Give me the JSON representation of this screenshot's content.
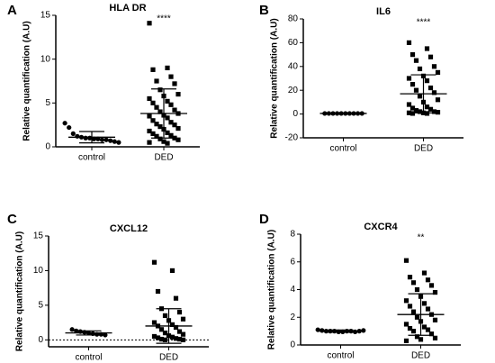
{
  "chart_data": [
    {
      "type": "dotplot",
      "panel": "A",
      "title": "HLA DR",
      "ylabel": "Relative quantification (A.U)",
      "annotation": "****",
      "categories": [
        "control",
        "DED"
      ],
      "markers": [
        "circle",
        "square"
      ],
      "points": [
        [
          2.7,
          2.2,
          1.5,
          1.2,
          1.1,
          1.0,
          1.0,
          0.9,
          0.9,
          0.8,
          0.8,
          0.7,
          0.6,
          0.5
        ],
        [
          14.1,
          9.0,
          8.8,
          8.0,
          7.5,
          7.2,
          6.5,
          6.0,
          5.8,
          5.5,
          5.2,
          5.0,
          4.8,
          4.5,
          4.2,
          4.0,
          3.8,
          3.6,
          3.5,
          3.3,
          3.0,
          2.8,
          2.6,
          2.5,
          2.3,
          2.1,
          2.0,
          1.8,
          1.6,
          1.5,
          1.3,
          1.2,
          1.0,
          0.9,
          0.8,
          0.6,
          0.5,
          0.4
        ]
      ],
      "mean": [
        1.1,
        3.8
      ],
      "sd": [
        0.65,
        2.8
      ],
      "ylim": [
        0,
        15
      ],
      "yticks": [
        0,
        5,
        10,
        15
      ]
    },
    {
      "type": "dotplot",
      "panel": "B",
      "title": "IL6",
      "ylabel": "Relative quantification (A.U)",
      "annotation": "****",
      "categories": [
        "control",
        "DED"
      ],
      "markers": [
        "circle",
        "square"
      ],
      "points": [
        [
          0.5,
          0.5,
          0.5,
          0.5,
          0.5,
          0.5,
          0.5,
          0.5,
          0.5,
          0.5
        ],
        [
          60,
          55,
          50,
          48,
          45,
          40,
          38,
          35,
          32,
          30,
          28,
          25,
          22,
          20,
          18,
          15,
          12,
          10,
          8,
          6,
          5,
          4,
          3,
          2,
          2,
          1.5,
          1,
          1,
          0.5,
          0.5
        ]
      ],
      "mean": [
        0.5,
        17
      ],
      "sd": [
        0.2,
        16
      ],
      "ylim": [
        -20,
        80
      ],
      "yticks": [
        -20,
        0,
        20,
        40,
        60,
        80
      ]
    },
    {
      "type": "dotplot",
      "panel": "C",
      "title": "CXCL12",
      "ylabel": "Relative quantification (A.U)",
      "categories": [
        "control",
        "DED"
      ],
      "markers": [
        "circle",
        "square"
      ],
      "hline": 0,
      "points": [
        [
          1.5,
          1.3,
          1.2,
          1.1,
          1.0,
          0.9,
          0.8,
          0.8,
          0.7
        ],
        [
          11.2,
          10.0,
          7.0,
          6.0,
          4.5,
          4.0,
          3.5,
          3.0,
          2.8,
          2.5,
          2.2,
          2.0,
          1.8,
          1.5,
          1.2,
          1.0,
          0.8,
          0.6,
          0.5,
          0.4,
          0.3,
          0.2,
          0.1,
          0.1,
          0.0,
          0.0
        ]
      ],
      "mean": [
        1.0,
        2.0
      ],
      "sd": [
        0.3,
        2.5
      ],
      "ylim": [
        -1,
        15
      ],
      "yticks": [
        0,
        5,
        10,
        15
      ]
    },
    {
      "type": "dotplot",
      "panel": "D",
      "title": "CXCR4",
      "ylabel": "Relative quantification (A.U)",
      "annotation": "**",
      "categories": [
        "control",
        "DED"
      ],
      "markers": [
        "circle",
        "square"
      ],
      "points": [
        [
          1.1,
          1.05,
          1.0,
          1.0,
          1.0,
          0.95,
          0.95,
          1.0,
          1.0,
          0.95,
          1.0,
          1.05
        ],
        [
          6.1,
          5.2,
          4.9,
          4.7,
          4.5,
          4.3,
          4.0,
          3.8,
          3.5,
          3.2,
          3.0,
          2.8,
          2.6,
          2.4,
          2.2,
          2.0,
          1.8,
          1.7,
          1.5,
          1.3,
          1.2,
          1.1,
          1.0,
          0.8,
          0.6,
          0.5,
          0.4,
          0.3
        ]
      ],
      "mean": [
        1.0,
        2.2
      ],
      "sd": [
        0.08,
        1.5
      ],
      "ylim": [
        0,
        8
      ],
      "yticks": [
        0,
        2,
        4,
        6,
        8
      ]
    }
  ]
}
